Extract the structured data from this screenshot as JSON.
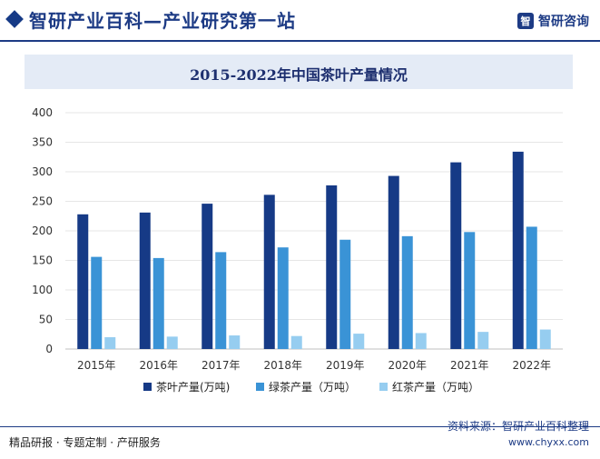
{
  "header": {
    "title": "智研产业百科—产业研究第一站",
    "logo_text": "智研咨询",
    "logo_mark": "智"
  },
  "footer": {
    "left_text": "精品研报 · 专题定制 · 产研服务",
    "source_text": "资料来源：智研产业百科整理",
    "url_text": "www.chyxx.com"
  },
  "colors": {
    "brand": "#1d3b85",
    "series": [
      "#163a86",
      "#3a93d6",
      "#96cdf0"
    ]
  },
  "chart_data": {
    "type": "bar",
    "title": "2015-2022年中国茶叶产量情况",
    "xlabel": "",
    "ylabel": "",
    "categories": [
      "2015年",
      "2016年",
      "2017年",
      "2018年",
      "2019年",
      "2020年",
      "2021年",
      "2022年"
    ],
    "series": [
      {
        "name": "茶叶产量(万吨)",
        "values": [
          228,
          231,
          246,
          261,
          277,
          293,
          316,
          334
        ]
      },
      {
        "name": "绿茶产量（万吨）",
        "values": [
          156,
          154,
          164,
          172,
          185,
          191,
          198,
          207
        ]
      },
      {
        "name": "红茶产量（万吨）",
        "values": [
          20,
          21,
          23,
          22,
          26,
          27,
          29,
          33
        ]
      }
    ],
    "ylim": [
      0,
      400
    ],
    "yticks": [
      0,
      50,
      100,
      150,
      200,
      250,
      300,
      350,
      400
    ],
    "grid": true,
    "legend_position": "bottom"
  }
}
